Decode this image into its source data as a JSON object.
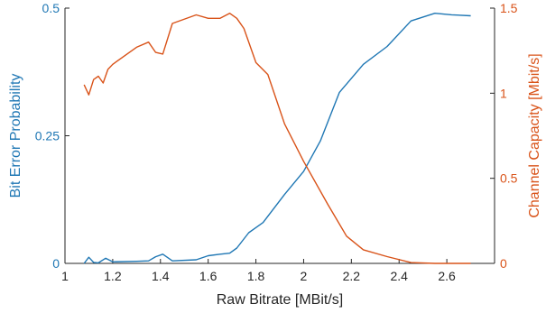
{
  "chart_data": {
    "type": "line",
    "xlabel": "Raw Bitrate [MBit/s]",
    "xlim": [
      1,
      2.8
    ],
    "xticks": [
      "1",
      "1.2",
      "1.4",
      "1.6",
      "1.8",
      "2",
      "2.2",
      "2.4",
      "2.6"
    ],
    "yaxes": {
      "left": {
        "label": "Bit Error Probability",
        "lim": [
          0,
          0.5
        ],
        "ticks": [
          "0",
          "0.25",
          "0.5"
        ],
        "color": "#1f77b4"
      },
      "right": {
        "label": "Channel Capacity [Mbit/s]",
        "lim": [
          0,
          1.5
        ],
        "ticks": [
          "0",
          "0.5",
          "1",
          "1.5"
        ],
        "color": "#d95319"
      }
    },
    "series": [
      {
        "axis": "left",
        "color": "#1f77b4",
        "x": [
          1.08,
          1.1,
          1.12,
          1.14,
          1.17,
          1.2,
          1.3,
          1.35,
          1.38,
          1.41,
          1.45,
          1.55,
          1.6,
          1.65,
          1.69,
          1.72,
          1.77,
          1.83,
          1.92,
          2.0,
          2.07,
          2.15,
          2.25,
          2.35,
          2.45,
          2.55,
          2.62,
          2.7
        ],
        "y": [
          0.0,
          0.012,
          0.002,
          0.001,
          0.01,
          0.003,
          0.004,
          0.005,
          0.013,
          0.018,
          0.005,
          0.007,
          0.015,
          0.018,
          0.02,
          0.03,
          0.06,
          0.08,
          0.135,
          0.18,
          0.24,
          0.335,
          0.39,
          0.425,
          0.475,
          0.49,
          0.487,
          0.485
        ]
      },
      {
        "axis": "right",
        "color": "#d95319",
        "x": [
          1.08,
          1.1,
          1.12,
          1.14,
          1.16,
          1.18,
          1.2,
          1.3,
          1.35,
          1.38,
          1.41,
          1.45,
          1.55,
          1.6,
          1.65,
          1.69,
          1.72,
          1.75,
          1.8,
          1.85,
          1.92,
          2.0,
          2.1,
          2.18,
          2.25,
          2.35,
          2.45,
          2.55,
          2.62,
          2.7
        ],
        "y": [
          1.05,
          0.99,
          1.08,
          1.1,
          1.06,
          1.14,
          1.17,
          1.27,
          1.3,
          1.24,
          1.23,
          1.41,
          1.46,
          1.44,
          1.44,
          1.47,
          1.44,
          1.38,
          1.18,
          1.11,
          0.82,
          0.6,
          0.35,
          0.16,
          0.08,
          0.04,
          0.005,
          0.0,
          0.0,
          0.0
        ]
      }
    ]
  }
}
